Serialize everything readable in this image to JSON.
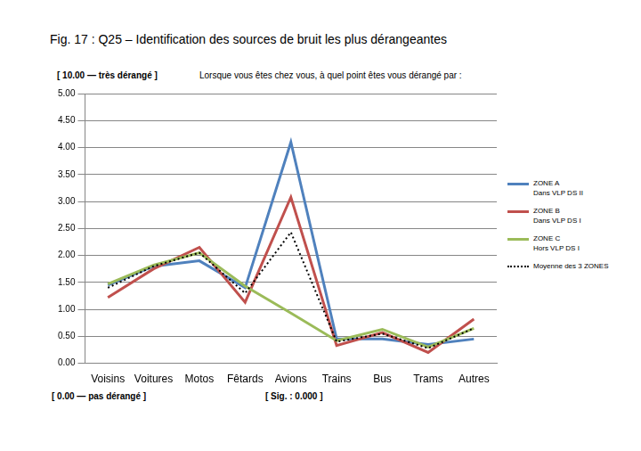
{
  "chart_data": {
    "type": "line",
    "title": "Fig. 17 : Q25 – Identification des sources de bruit les plus dérangeantes",
    "subtitle": "Lorsque vous êtes chez vous, à quel point êtes vous dérangé par :",
    "annotations": [
      "[ 10.00 — très dérangé ]",
      "[ 0.00 — pas dérangé ]",
      "[ Sig. : 0.000 ]"
    ],
    "categories": [
      "Voisins",
      "Voitures",
      "Motos",
      "Fêtards",
      "Avions",
      "Trains",
      "Bus",
      "Trams",
      "Autres"
    ],
    "series": [
      {
        "name": "ZONE A\nDans VLP DS II",
        "color": "#4f81bd",
        "line_style": "solid",
        "values": [
          1.45,
          1.8,
          1.9,
          1.4,
          4.1,
          0.45,
          0.45,
          0.35,
          0.45
        ]
      },
      {
        "name": "ZONE B\nDans VLP DS I",
        "color": "#c0504d",
        "line_style": "solid",
        "values": [
          1.22,
          1.75,
          2.15,
          1.13,
          3.08,
          0.33,
          0.57,
          0.2,
          0.82
        ]
      },
      {
        "name": "ZONE C\nHors VLP DS I",
        "color": "#9bbb59",
        "line_style": "solid",
        "values": [
          1.47,
          1.82,
          2.05,
          1.43,
          0.93,
          0.42,
          0.63,
          0.3,
          0.65
        ]
      },
      {
        "name": "Moyenne des 3 ZONES",
        "color": "#000000",
        "line_style": "dotted",
        "values": [
          1.4,
          1.8,
          2.05,
          1.3,
          2.43,
          0.4,
          0.55,
          0.28,
          0.65
        ]
      }
    ],
    "ylim": [
      0,
      5
    ],
    "yticks": [
      {
        "value": 0,
        "label": "0.00"
      },
      {
        "value": 0.5,
        "label": "0.50"
      },
      {
        "value": 1,
        "label": "1.00"
      },
      {
        "value": 1.5,
        "label": "1.50"
      },
      {
        "value": 2,
        "label": "2.00"
      },
      {
        "value": 2.5,
        "label": "2.50"
      },
      {
        "value": 3,
        "label": "3.00"
      },
      {
        "value": 3.5,
        "label": "3.50"
      },
      {
        "value": 4,
        "label": "4.00"
      },
      {
        "value": 4.5,
        "label": "4.50"
      },
      {
        "value": 5,
        "label": "5.00"
      }
    ],
    "grid": true,
    "legend": "right"
  }
}
